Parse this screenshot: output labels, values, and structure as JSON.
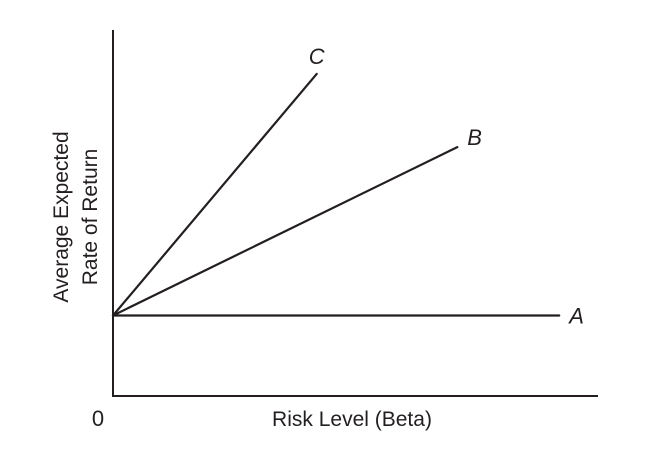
{
  "chart_data": {
    "type": "line",
    "title": "",
    "xlabel": "Risk Level (Beta)",
    "ylabel_lines": [
      "Average Expected",
      "Rate of Return"
    ],
    "origin_label": "0",
    "xlim": [
      0,
      100
    ],
    "ylim": [
      0,
      100
    ],
    "grid": false,
    "legend": "none",
    "series": [
      {
        "name": "A",
        "x": [
          0,
          92
        ],
        "y": [
          22,
          22
        ]
      },
      {
        "name": "B",
        "x": [
          0,
          71
        ],
        "y": [
          22,
          68
        ]
      },
      {
        "name": "C",
        "x": [
          0,
          42
        ],
        "y": [
          22,
          88
        ]
      }
    ]
  }
}
